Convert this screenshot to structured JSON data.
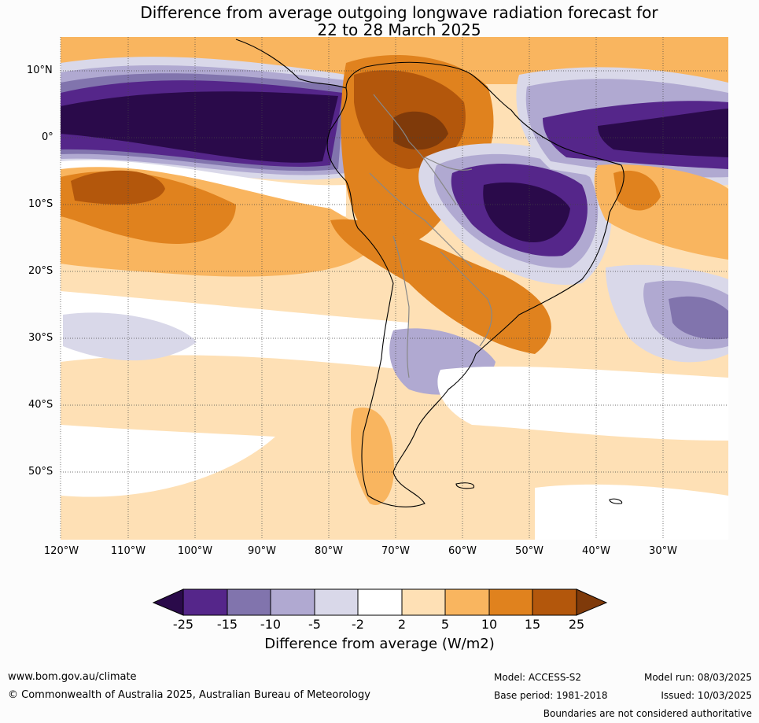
{
  "title_line1": "Difference from average outgoing longwave radiation forecast for",
  "title_line2": "22 to 28 March 2025",
  "lat_labels": [
    "10°N",
    "0°",
    "10°S",
    "20°S",
    "30°S",
    "40°S",
    "50°S"
  ],
  "lon_labels": [
    "120°W",
    "110°W",
    "100°W",
    "90°W",
    "80°W",
    "70°W",
    "60°W",
    "50°W",
    "40°W",
    "30°W"
  ],
  "colorbar": {
    "ticks": [
      "-25",
      "-15",
      "-10",
      "-5",
      "-2",
      "2",
      "5",
      "10",
      "15",
      "25"
    ],
    "label": "Difference from average (W/m2)",
    "colors": [
      "#2a0a4a",
      "#55268a",
      "#8174ad",
      "#b0a9d1",
      "#d9d8e9",
      "#ffffff",
      "#fee0b5",
      "#f9b55f",
      "#e0821e",
      "#b3570c",
      "#7f3a0a"
    ]
  },
  "footer": {
    "url": "www.bom.gov.au/climate",
    "copyright": "© Commonwealth of Australia 2025, Australian Bureau of Meteorology",
    "model": "Model: ACCESS-S2",
    "model_run": "Model run: 08/03/2025",
    "base_period": "Base period: 1981-2018",
    "issued": "Issued: 10/03/2025",
    "disclaimer": "Boundaries are not considered authoritative"
  }
}
